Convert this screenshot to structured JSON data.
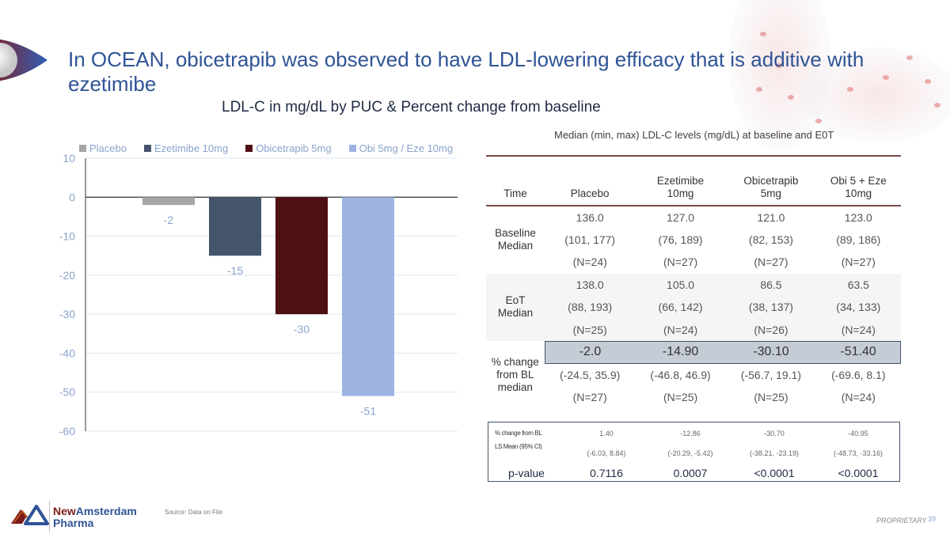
{
  "slide": {
    "title": "In OCEAN, obicetrapib was observed to have LDL-lowering efficacy that is additive with ezetimibe",
    "subtitle": "LDL-C in mg/dL by PUC & Percent change from baseline",
    "source": "Source: Data on File",
    "proprietary": "PROPRIETARY",
    "page_number": "39",
    "logo": {
      "line1_a": "New",
      "line1_b": "Amsterdam",
      "line2": "Pharma"
    }
  },
  "chart_data": {
    "type": "bar",
    "title": "",
    "xlabel": "",
    "ylabel": "",
    "categories": [
      ""
    ],
    "series": [
      {
        "name": "Placebo",
        "values": [
          -2
        ],
        "color": "#a6a6a6",
        "label": "-2"
      },
      {
        "name": "Ezetimibe 10mg",
        "values": [
          -15
        ],
        "color": "#44546a",
        "label": "-15"
      },
      {
        "name": "Obicetrapib 5mg",
        "values": [
          -30
        ],
        "color": "#4f1013",
        "label": "-30"
      },
      {
        "name": "Obi 5mg / Eze 10mg",
        "values": [
          -51
        ],
        "color": "#9db4e3",
        "label": "-51"
      }
    ],
    "ylim": [
      -60,
      10
    ],
    "yticks": [
      10,
      0,
      -10,
      -20,
      -30,
      -40,
      -50,
      -60
    ],
    "grid": true,
    "legend_position": "top"
  },
  "table": {
    "caption": "Median (min, max) LDL-C levels (mg/dL) at baseline and E0T",
    "headers": [
      "Time",
      "Placebo",
      "Ezetimibe\n10mg",
      "Obicetrapib\n5mg",
      "Obi 5 + Eze\n10mg"
    ],
    "header_lines": [
      [
        "Time"
      ],
      [
        "Placebo"
      ],
      [
        "Ezetimibe",
        "10mg"
      ],
      [
        "Obicetrapib",
        "5mg"
      ],
      [
        "Obi 5 + Eze",
        "10mg"
      ]
    ],
    "groups": [
      {
        "label_lines": [
          "Baseline",
          "Median"
        ],
        "rows": [
          [
            "136.0",
            "127.0",
            "121.0",
            "123.0"
          ],
          [
            "(101, 177)",
            "(76, 189)",
            "(82, 153)",
            "(89, 186)"
          ],
          [
            "(N=24)",
            "(N=27)",
            "(N=27)",
            "(N=27)"
          ]
        ]
      },
      {
        "label_lines": [
          "EoT",
          "Median"
        ],
        "rows": [
          [
            "138.0",
            "105.0",
            "86.5",
            "63.5"
          ],
          [
            "(88, 193)",
            "(66, 142)",
            "(38, 137)",
            "(34, 133)"
          ],
          [
            "(N=25)",
            "(N=24)",
            "(N=26)",
            "(N=24)"
          ]
        ]
      },
      {
        "label_lines": [
          "% change",
          "from BL",
          "median"
        ],
        "rows": [
          [
            "-2.0",
            "-14.90",
            "-30.10",
            "-51.40"
          ],
          [
            "(-24.5, 35.9)",
            "(-46.8, 46.9)",
            "(-56.7, 19.1)",
            "(-69.6, 8.1)"
          ],
          [
            "(N=27)",
            "(N=25)",
            "(N=25)",
            "(N=24)"
          ]
        ]
      }
    ],
    "ls_mean": {
      "label_line1": "% change from BL",
      "label_line2": "LS Mean (95% CI)",
      "values": [
        "1.40",
        "-12.86",
        "-30.70",
        "-40.95"
      ],
      "ci": [
        "(-6.03, 8.84)",
        "(-20.29, -5.42)",
        "(-38.21, -23.19)",
        "(-48.73, -33.16)"
      ]
    },
    "p_value": {
      "label": "p-value",
      "values": [
        "0.7116",
        "0.0007",
        "<0.0001",
        "<0.0001"
      ]
    }
  }
}
